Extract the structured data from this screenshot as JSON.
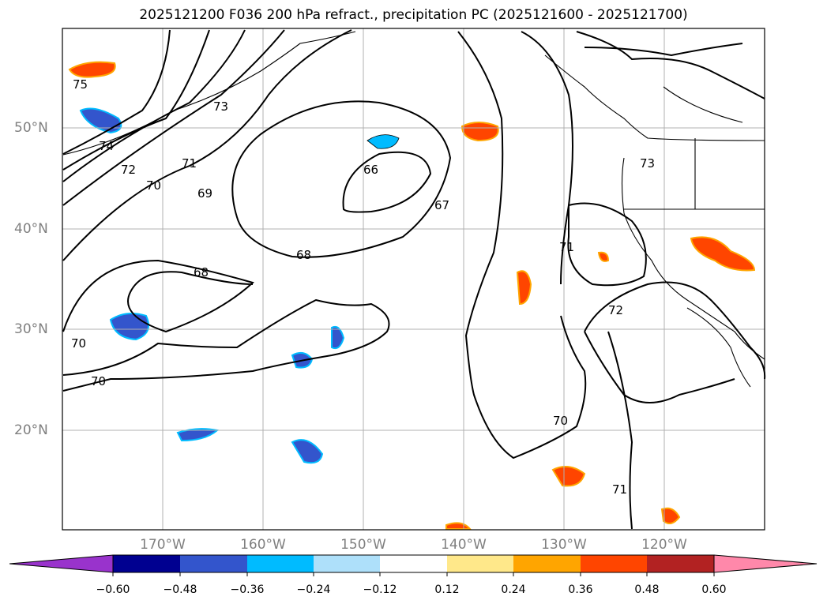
{
  "title": "2025121200 F036 200 hPa refract., precipitation PC (2025121600 - 2025121700)",
  "lat_labels": [
    "50°N",
    "40°N",
    "30°N",
    "20°N"
  ],
  "lon_labels": [
    "170°W",
    "160°W",
    "150°W",
    "140°W",
    "130°W",
    "120°W"
  ],
  "contour_labels": [
    "75",
    "74",
    "73",
    "72",
    "71",
    "70",
    "69",
    "66",
    "67",
    "68",
    "68",
    "70",
    "70",
    "73",
    "71",
    "72",
    "70",
    "71"
  ],
  "colorbar": {
    "ticks": [
      "−0.60",
      "−0.48",
      "−0.36",
      "−0.24",
      "−0.12",
      "0.12",
      "0.24",
      "0.36",
      "0.48",
      "0.60"
    ],
    "colors": [
      "#9933cc",
      "#000090",
      "#3355cc",
      "#00bbff",
      "#aee0fa",
      "#ffffff",
      "#ffe88a",
      "#ffa500",
      "#ff4500",
      "#b22222",
      "#ff88aa"
    ]
  }
}
